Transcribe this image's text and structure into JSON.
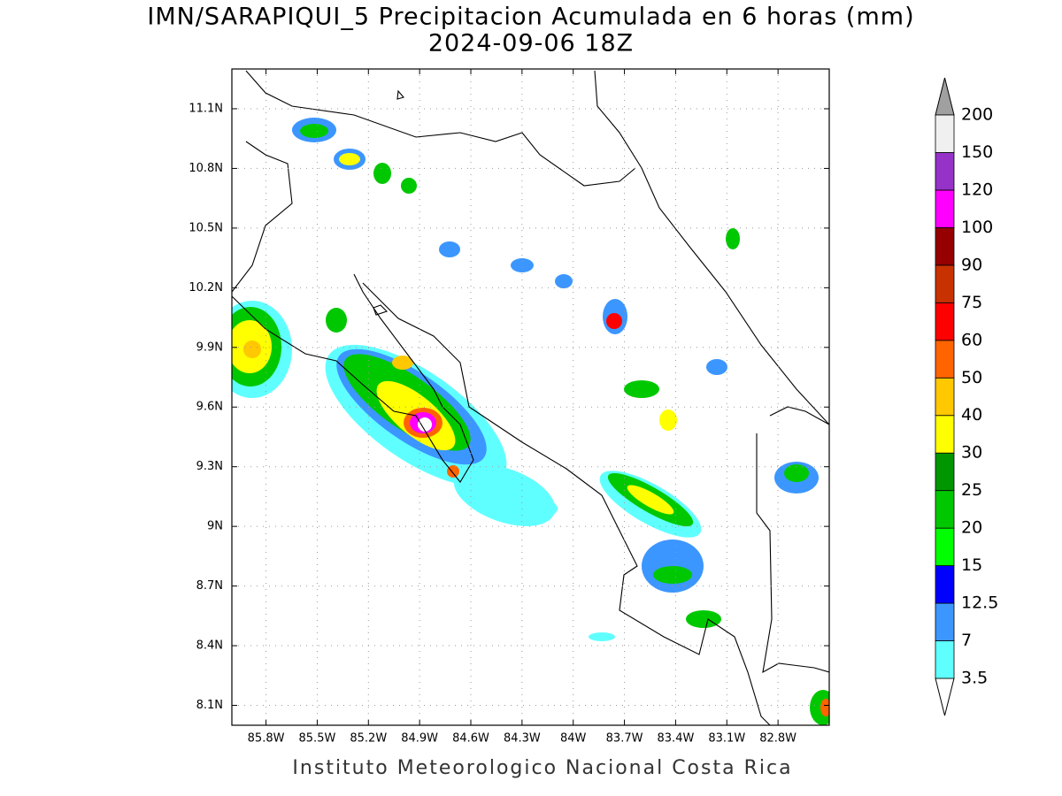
{
  "title": "IMN/SARAPIQUI_5 Precipitacion Acumulada en 6 horas (mm)",
  "subtitle": "2024-09-06 18Z",
  "footer": "Instituto Meteorologico Nacional Costa Rica",
  "map": {
    "lonlim": [
      -86,
      -82.5
    ],
    "latlim": [
      8,
      11.3
    ],
    "lat_ticks": [
      {
        "value": 11.1,
        "label": "11.1N"
      },
      {
        "value": 10.8,
        "label": "10.8N"
      },
      {
        "value": 10.5,
        "label": "10.5N"
      },
      {
        "value": 10.2,
        "label": "10.2N"
      },
      {
        "value": 9.9,
        "label": "9.9N"
      },
      {
        "value": 9.6,
        "label": "9.6N"
      },
      {
        "value": 9.3,
        "label": "9.3N"
      },
      {
        "value": 9,
        "label": "9N"
      },
      {
        "value": 8.7,
        "label": "8.7N"
      },
      {
        "value": 8.4,
        "label": "8.4N"
      },
      {
        "value": 8.1,
        "label": "8.1N"
      }
    ],
    "lon_ticks": [
      {
        "value": -85.8,
        "label": "85.8W"
      },
      {
        "value": -85.5,
        "label": "85.5W"
      },
      {
        "value": -85.2,
        "label": "85.2W"
      },
      {
        "value": -84.9,
        "label": "84.9W"
      },
      {
        "value": -84.6,
        "label": "84.6W"
      },
      {
        "value": -84.3,
        "label": "84.3W"
      },
      {
        "value": -84,
        "label": "84W"
      },
      {
        "value": -83.7,
        "label": "83.7W"
      },
      {
        "value": -83.4,
        "label": "83.4W"
      },
      {
        "value": -83.1,
        "label": "83.1W"
      },
      {
        "value": -82.8,
        "label": "82.8W"
      }
    ],
    "grid": true
  },
  "colorbar": {
    "levels": [
      3.5,
      7,
      12.5,
      15,
      20,
      25,
      30,
      40,
      50,
      60,
      75,
      90,
      100,
      120,
      150,
      200
    ],
    "colors": [
      "#60ffff",
      "#3c96ff",
      "#0000ff",
      "#00ff00",
      "#00c800",
      "#009600",
      "#ffff00",
      "#ffc800",
      "#ff6400",
      "#ff0000",
      "#c83200",
      "#960000",
      "#ff00ff",
      "#9632c8",
      "#f0f0f0"
    ],
    "under_color": "#ffffff",
    "over_color": "#a0a0a0"
  }
}
